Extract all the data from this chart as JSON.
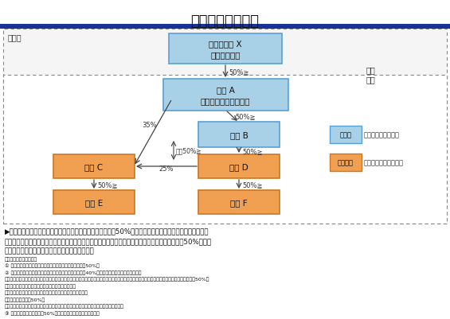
{
  "title": "外国投資家の範囲",
  "title_fontsize": 13,
  "bg_color": "#ffffff",
  "blue_fill": "#a8d0e6",
  "blue_border": "#5a9fd4",
  "orange_fill": "#f0a050",
  "orange_border": "#cc7722",
  "nodes": {
    "X": {
      "label": "外国投資家 X\n（非居住者）"
    },
    "A": {
      "label": "会社 A\n（居住者外国投資家）"
    },
    "B": {
      "label": "会社 B"
    },
    "C": {
      "label": "会社 C"
    },
    "D": {
      "label": "会社 D"
    },
    "E": {
      "label": "会社 E"
    },
    "F": {
      "label": "会社 F"
    }
  },
  "例_label": "（例）",
  "外国_label": "外国",
  "日本_label": "日本",
  "legend_blue_text": "ブルー",
  "legend_blue_desc": "：現行の外国投資家",
  "legend_orange_text": "オレンジ",
  "legend_orange_desc": "：改正後の外国投資家",
  "pct_XA": "50%≧",
  "pct_AB": "50%≧",
  "pct_BD": "50%≧",
  "pct_DF": "50%≧",
  "pct_CE": "50%≧",
  "pct_35": "35%",
  "pct_25": "25%",
  "pct_gosan": "合算50%≧",
  "bullet": "▶　現行制度では、非居住者である個人又は外国法人に直接50%以上保有されている日本の会社とその子会\n　　社までが外国投資家となるが、改正後は、当該日本の会社又は会社法上の「子会社」を通じて50%以上保\n　　有されている限り、全て外国投資家となる。",
  "sub1": "〈会社法の子会社定義〉",
  "sub2": "① 自己（子会社等を含む）の計算による議決権の所有割合50%超",
  "sub3": "② 自己（子会社等を含む）の計算による議決権の所有割合40%以上、かつ下記のいずれかに該当",
  "sub4": "　イ　自己所有等議決権数割合（自己の計算による所有分、緊密な関係者の所有分、同一内容の議決権行使に同意している者の所有分の合計）50%超",
  "sub5": "　ロ　取締役会等の構成員の過半数が自己の役職員等",
  "sub6": "　ハ　重要な財務・事業の方針の決定を支配する契約等が存在",
  "sub7": "　ニ　融資額の割合50%超",
  "sub8": "　ホ　その他重要な財務・事業の方針の決定を支配していることが推測される事業の存在",
  "sub9": "③ 自己所有等議決権数割合50%超で上記ロ～ホのいずれかに該当"
}
